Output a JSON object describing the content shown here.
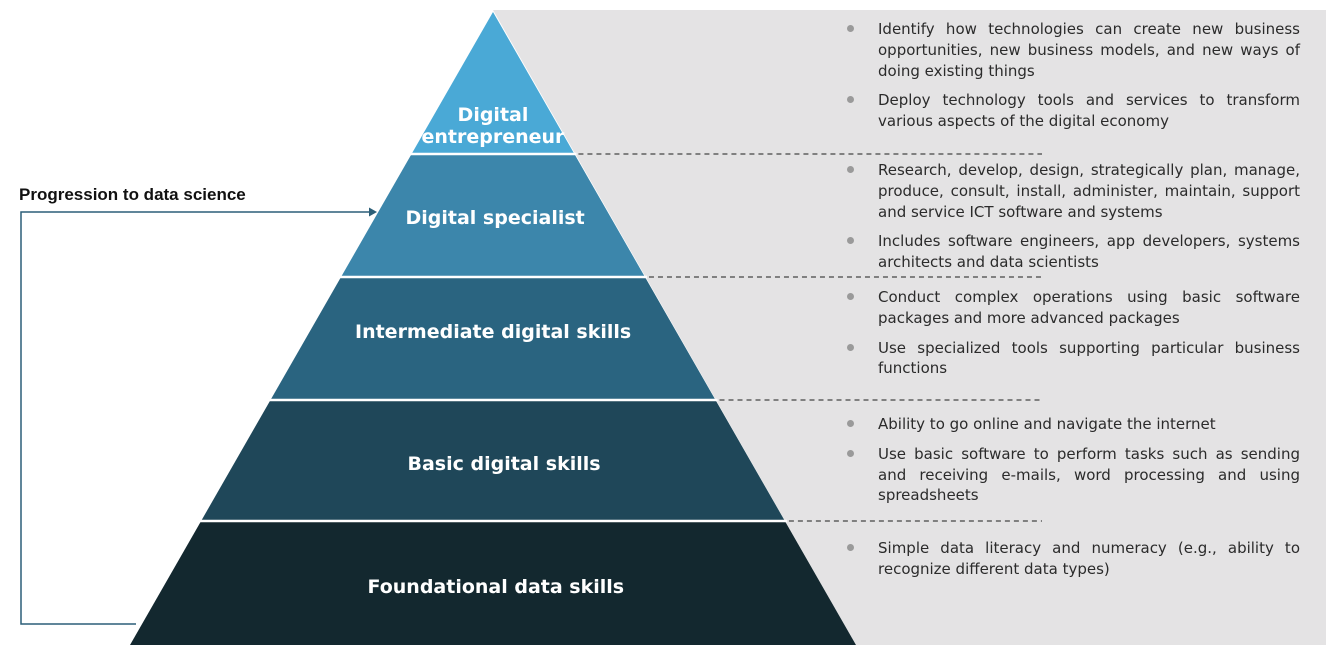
{
  "colors": {
    "panel": "#e4e3e4",
    "level_1": "#4aa9d6",
    "level_2": "#3c86ab",
    "level_3": "#2a6480",
    "level_4": "#1f4759",
    "level_5": "#13282f",
    "connector": "#2c5f78"
  },
  "progression_label": "Progression to data science",
  "levels": [
    {
      "label_lines": [
        "Digital",
        "entrepreneur"
      ],
      "bullets": [
        "Identify how technologies can create new business opportunities, new business models, and new ways of doing existing things",
        "Deploy technology tools and services to transform various aspects of the digital economy"
      ]
    },
    {
      "label_lines": [
        "Digital specialist"
      ],
      "bullets": [
        "Research, develop, design, strategically plan, manage, produce, consult, install, administer, maintain, support and service ICT software and systems",
        "Includes software engineers, app developers, systems architects and data scientists"
      ]
    },
    {
      "label_lines": [
        "Intermediate digital skills"
      ],
      "bullets": [
        "Conduct complex operations using basic software packages and more advanced packages",
        "Use specialized tools supporting particular business functions"
      ]
    },
    {
      "label_lines": [
        "Basic digital skills"
      ],
      "bullets": [
        "Ability to go online and navigate the internet",
        "Use basic software to perform tasks such as sending and receiving e-mails, word processing and using spreadsheets"
      ]
    },
    {
      "label_lines": [
        "Foundational data skills"
      ],
      "bullets": [
        "Simple data literacy and numeracy (e.g., ability to recognize different data types)"
      ]
    }
  ]
}
